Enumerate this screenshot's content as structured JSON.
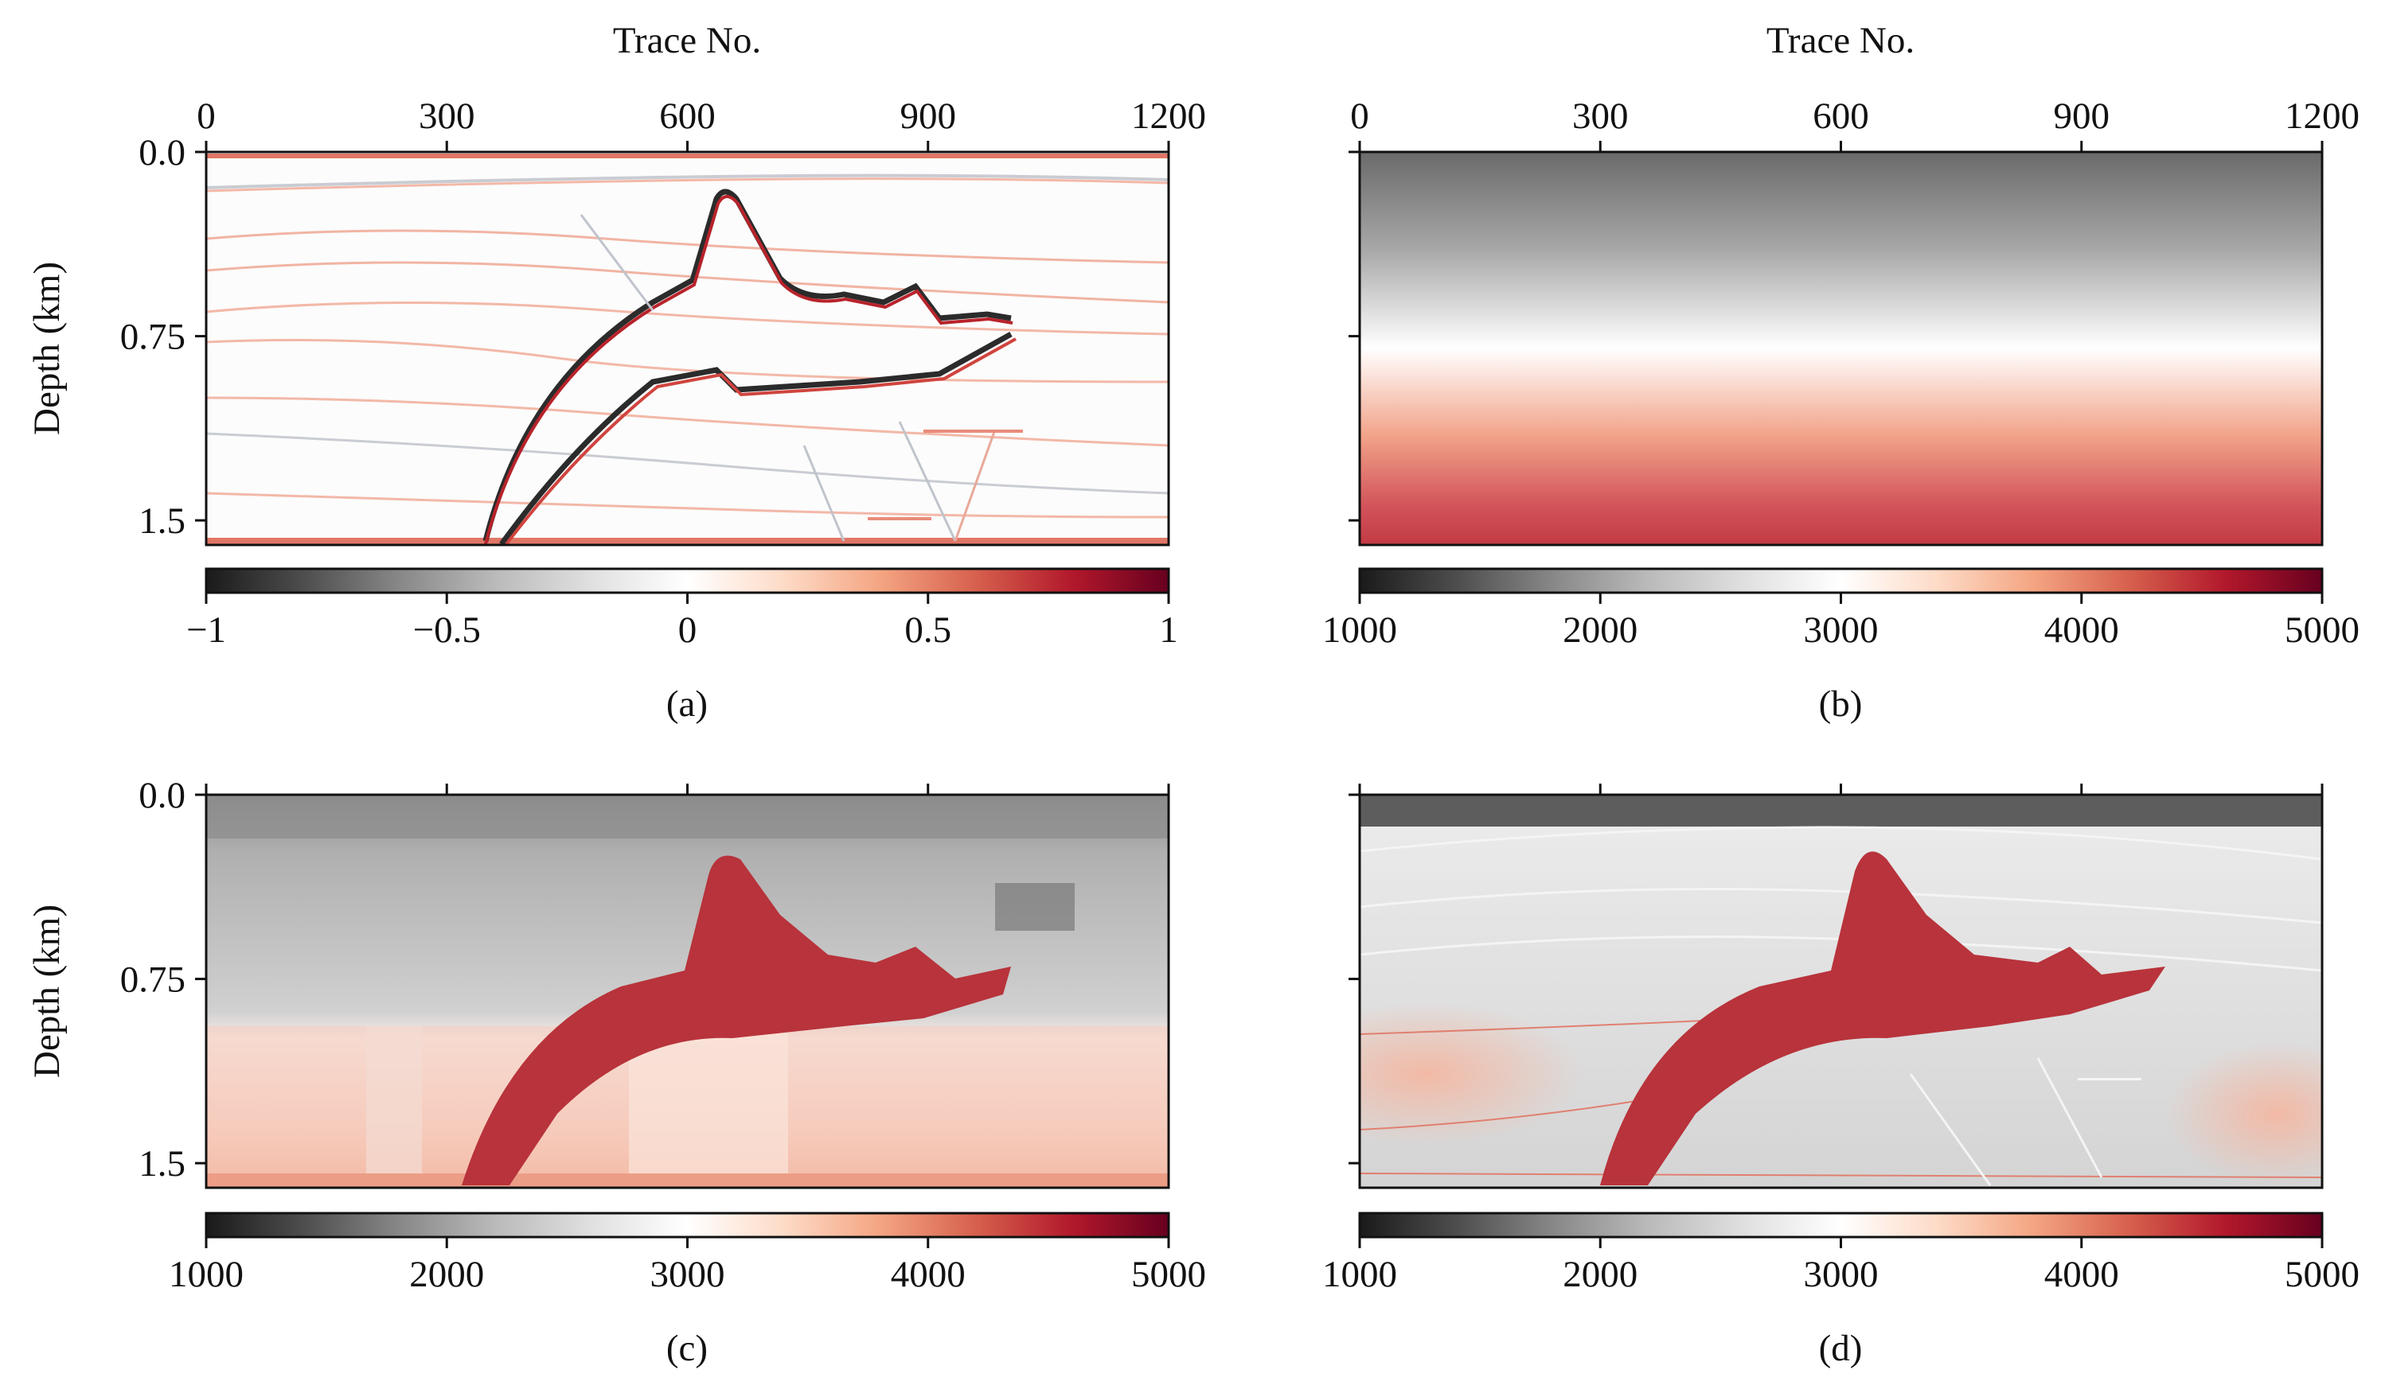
{
  "colormap": {
    "name": "RdGy_r",
    "stops": [
      "#1a1a1a",
      "#4d4d4d",
      "#878787",
      "#bababa",
      "#e0e0e0",
      "#ffffff",
      "#fddbc7",
      "#f4a582",
      "#d6604d",
      "#b2182b",
      "#67001f"
    ]
  },
  "panels": [
    {
      "id": "a",
      "label": "(a)",
      "image": "seismic-image"
    },
    {
      "id": "b",
      "label": "(b)",
      "image": "initial-velocity-model"
    },
    {
      "id": "c",
      "label": "(c)",
      "image": "inverted-velocity-model"
    },
    {
      "id": "d",
      "label": "(d)",
      "image": "true-velocity-model"
    }
  ],
  "axes": {
    "x_title": "Trace No.",
    "x_ticks": [
      "0",
      "300",
      "600",
      "900",
      "1200"
    ],
    "x_range": [
      0,
      1200
    ],
    "y_title": "Depth (km)",
    "y_ticks": [
      "0.0",
      "0.75",
      "1.5"
    ],
    "y_range": [
      0,
      1.6
    ]
  },
  "colorbars": {
    "seismic": {
      "range": [
        -1,
        1
      ],
      "ticks": [
        "−1",
        "−0.5",
        "0",
        "0.5",
        "1"
      ]
    },
    "velocity": {
      "range": [
        1000,
        5000
      ],
      "ticks": [
        "1000",
        "2000",
        "3000",
        "4000",
        "5000"
      ]
    }
  },
  "chart_data": [
    {
      "type": "heatmap",
      "panel": "(a)",
      "x_title": "Trace No.",
      "xlim": [
        0,
        1200
      ],
      "y_title": "Depth (km)",
      "ylim": [
        1.6,
        0
      ],
      "colorbar_range": [
        -1,
        1
      ],
      "reflectors_depth_km": [
        0.0,
        0.15,
        0.45,
        0.65,
        0.97,
        1.22,
        1.57
      ],
      "salt_top_depth_km": {
        "trace": [
          370,
          480,
          540,
          560,
          620,
          648,
          700,
          720,
          780,
          810,
          860,
          880,
          900,
          950,
          1000
        ],
        "depth": [
          1.1,
          0.75,
          0.6,
          0.58,
          0.2,
          0.13,
          0.42,
          0.5,
          0.55,
          0.63,
          0.6,
          0.58,
          0.66,
          0.65,
          0.7
        ]
      },
      "salt_base_depth_km": {
        "trace": [
          320,
          400,
          500,
          660,
          780,
          900,
          1000
        ],
        "depth": [
          1.57,
          1.33,
          0.97,
          0.9,
          0.98,
          0.93,
          0.78
        ]
      }
    },
    {
      "type": "heatmap",
      "panel": "(b)",
      "x_title": "Trace No.",
      "xlim": [
        0,
        1200
      ],
      "ylim": [
        1.6,
        0
      ],
      "colorbar_range": [
        1000,
        5000
      ],
      "velocity_profile": {
        "depth_km": [
          0.0,
          0.3,
          0.8,
          1.2,
          1.6
        ],
        "velocity": [
          1500,
          2000,
          3000,
          4000,
          4600
        ]
      }
    },
    {
      "type": "heatmap",
      "panel": "(c)",
      "ylim": [
        1.6,
        0
      ],
      "xlim": [
        0,
        1200
      ],
      "colorbar_range": [
        1000,
        5000
      ],
      "salt_velocity": 4500
    },
    {
      "type": "heatmap",
      "panel": "(d)",
      "ylim": [
        1.6,
        0
      ],
      "xlim": [
        0,
        1200
      ],
      "colorbar_range": [
        1000,
        5000
      ],
      "salt_velocity": 4500
    }
  ]
}
